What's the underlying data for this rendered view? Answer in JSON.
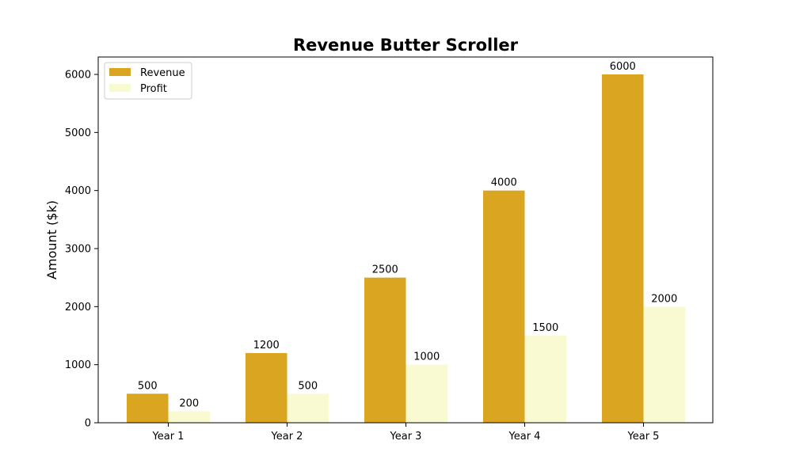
{
  "chart_data": {
    "type": "bar",
    "title": "Revenue Butter Scroller",
    "xlabel": "",
    "ylabel": "Amount ($k)",
    "categories": [
      "Year 1",
      "Year 2",
      "Year 3",
      "Year 4",
      "Year 5"
    ],
    "series": [
      {
        "name": "Revenue",
        "values": [
          500,
          1200,
          2500,
          4000,
          6000
        ],
        "color": "#DAA520"
      },
      {
        "name": "Profit",
        "values": [
          200,
          500,
          1000,
          1500,
          2000
        ],
        "color": "#FAFAD2"
      }
    ],
    "ylim": [
      0,
      6300
    ],
    "yticks": [
      0,
      1000,
      2000,
      3000,
      4000,
      5000,
      6000
    ],
    "grid": false,
    "legend_position": "top-left",
    "data_labels": true
  }
}
